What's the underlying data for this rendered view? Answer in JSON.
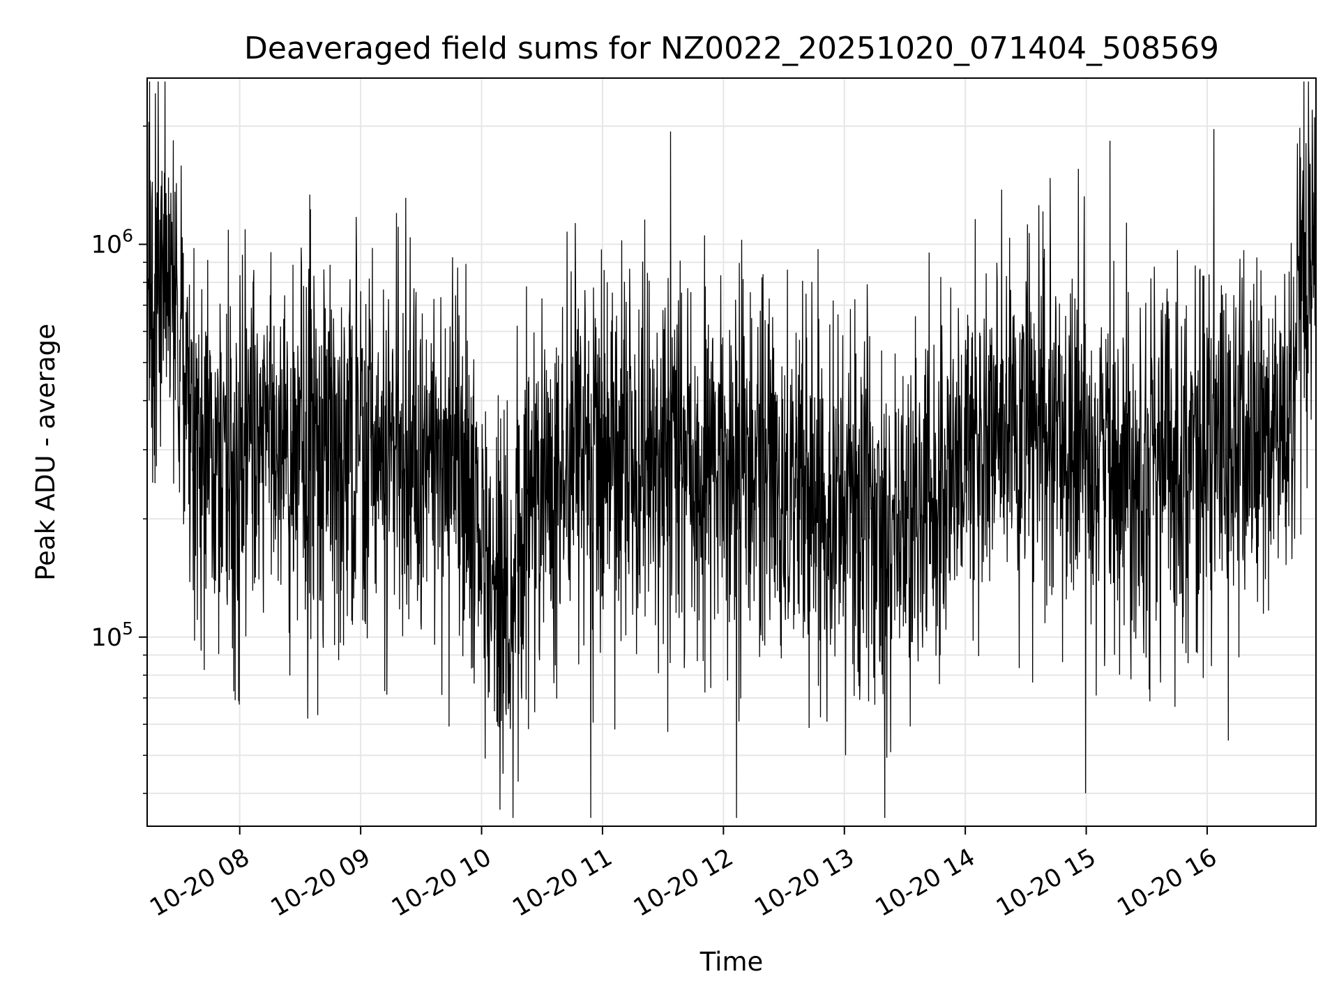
{
  "chart_data": {
    "type": "line",
    "title": "Deaveraged field sums for NZ0022_20251020_071404_508569",
    "xlabel": "Time",
    "ylabel": "Peak ADU - average",
    "x_scale": "time",
    "y_scale": "log",
    "xlim": [
      "2025-10-20T07:14:04",
      "2025-10-20T16:54:00"
    ],
    "ylim": [
      33000,
      2650000
    ],
    "x_ticks": [
      {
        "value": "2025-10-20T08:00:00",
        "label": "10-20 08"
      },
      {
        "value": "2025-10-20T09:00:00",
        "label": "10-20 09"
      },
      {
        "value": "2025-10-20T10:00:00",
        "label": "10-20 10"
      },
      {
        "value": "2025-10-20T11:00:00",
        "label": "10-20 11"
      },
      {
        "value": "2025-10-20T12:00:00",
        "label": "10-20 12"
      },
      {
        "value": "2025-10-20T13:00:00",
        "label": "10-20 13"
      },
      {
        "value": "2025-10-20T14:00:00",
        "label": "10-20 14"
      },
      {
        "value": "2025-10-20T15:00:00",
        "label": "10-20 15"
      },
      {
        "value": "2025-10-20T16:00:00",
        "label": "10-20 16"
      }
    ],
    "y_major_ticks": [
      {
        "value": 100000,
        "base": "10",
        "exp": "5"
      },
      {
        "value": 1000000,
        "base": "10",
        "exp": "6"
      }
    ],
    "grid": true,
    "line_color": "#000000",
    "grid_color": "#e6e6e6",
    "series": [
      {
        "x": [
          "2025-10-20T07:14:04",
          "2025-10-20T07:20:00",
          "2025-10-20T07:25:00",
          "2025-10-20T07:30:00",
          "2025-10-20T07:35:00",
          "2025-10-20T07:40:00",
          "2025-10-20T07:45:00",
          "2025-10-20T07:50:00",
          "2025-10-20T07:55:00",
          "2025-10-20T08:00:00",
          "2025-10-20T08:10:00",
          "2025-10-20T08:20:00",
          "2025-10-20T08:30:00",
          "2025-10-20T08:40:00",
          "2025-10-20T08:50:00",
          "2025-10-20T09:00:00",
          "2025-10-20T09:10:00",
          "2025-10-20T09:20:00",
          "2025-10-20T09:30:00",
          "2025-10-20T09:40:00",
          "2025-10-20T09:50:00",
          "2025-10-20T10:00:00",
          "2025-10-20T10:05:00",
          "2025-10-20T10:10:00",
          "2025-10-20T10:15:00",
          "2025-10-20T10:20:00",
          "2025-10-20T10:30:00",
          "2025-10-20T10:45:00",
          "2025-10-20T11:00:00",
          "2025-10-20T11:15:00",
          "2025-10-20T11:30:00",
          "2025-10-20T11:45:00",
          "2025-10-20T12:00:00",
          "2025-10-20T12:15:00",
          "2025-10-20T12:30:00",
          "2025-10-20T12:45:00",
          "2025-10-20T13:00:00",
          "2025-10-20T13:15:00",
          "2025-10-20T13:30:00",
          "2025-10-20T13:45:00",
          "2025-10-20T14:00:00",
          "2025-10-20T14:15:00",
          "2025-10-20T14:30:00",
          "2025-10-20T14:45:00",
          "2025-10-20T15:00:00",
          "2025-10-20T15:15:00",
          "2025-10-20T15:30:00",
          "2025-10-20T15:45:00",
          "2025-10-20T16:00:00",
          "2025-10-20T16:15:00",
          "2025-10-20T16:30:00",
          "2025-10-20T16:40:00",
          "2025-10-20T16:48:00",
          "2025-10-20T16:54:00"
        ],
        "y": [
          650000,
          750000,
          900000,
          550000,
          420000,
          330000,
          310000,
          290000,
          300000,
          300000,
          320000,
          330000,
          320000,
          310000,
          300000,
          300000,
          280000,
          300000,
          280000,
          260000,
          240000,
          190000,
          130000,
          90000,
          110000,
          180000,
          250000,
          270000,
          280000,
          290000,
          280000,
          270000,
          260000,
          250000,
          250000,
          240000,
          220000,
          200000,
          190000,
          230000,
          300000,
          320000,
          330000,
          310000,
          300000,
          290000,
          280000,
          290000,
          300000,
          310000,
          320000,
          340000,
          700000,
          800000
        ]
      }
    ]
  }
}
